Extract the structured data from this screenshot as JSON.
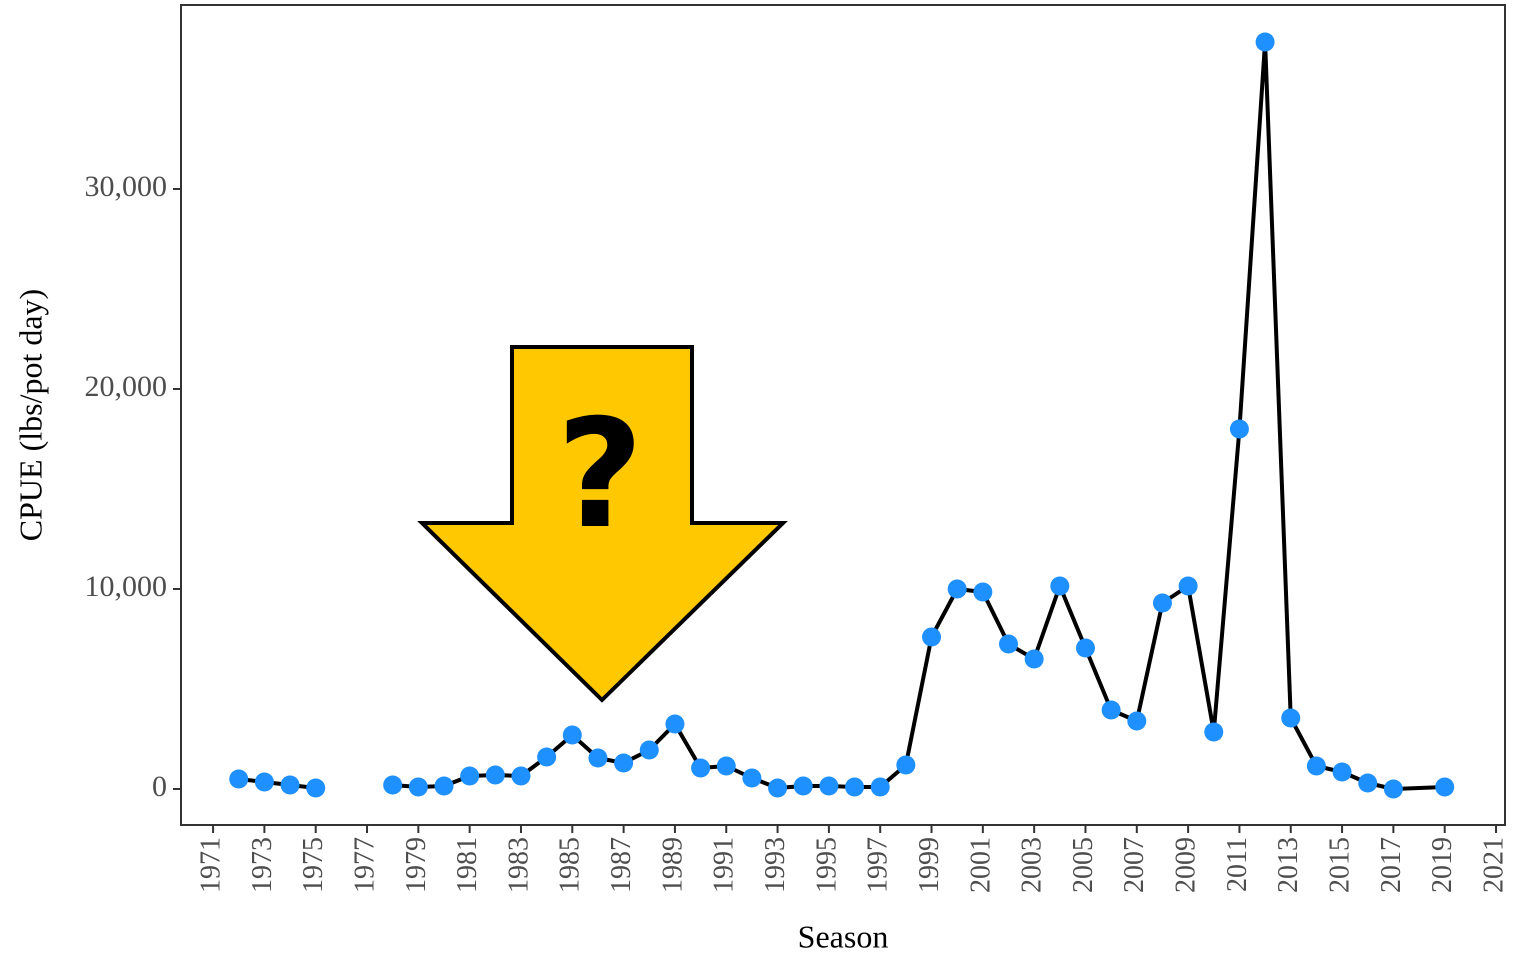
{
  "chart_data": {
    "type": "line",
    "x_label": "Season",
    "y_label": "CPUE (lbs/pot day)",
    "annotation": "?",
    "x": [
      1972,
      1973,
      1974,
      1975,
      1976,
      1977,
      1978,
      1979,
      1980,
      1981,
      1982,
      1983,
      1984,
      1985,
      1986,
      1987,
      1988,
      1989,
      1990,
      1991,
      1992,
      1993,
      1994,
      1995,
      1996,
      1997,
      1998,
      1999,
      2000,
      2001,
      2002,
      2003,
      2004,
      2005,
      2006,
      2007,
      2008,
      2009,
      2010,
      2011,
      2012,
      2013,
      2014,
      2015,
      2016,
      2017,
      2019
    ],
    "values": [
      500,
      350,
      200,
      50,
      null,
      null,
      200,
      100,
      150,
      650,
      700,
      650,
      1600,
      2700,
      1550,
      1300,
      1950,
      3250,
      1050,
      1150,
      550,
      50,
      150,
      150,
      100,
      100,
      1200,
      7600,
      10000,
      9850,
      7250,
      6500,
      10150,
      7050,
      3950,
      3400,
      9300,
      10150,
      2850,
      18000,
      37350,
      3550,
      1150,
      850,
      300,
      0,
      100
    ],
    "line_color": "#000000",
    "point_color": "#1e90ff",
    "xlim": [
      1969.75,
      2021.35
    ],
    "xticks": [
      1971,
      1973,
      1975,
      1977,
      1979,
      1981,
      1983,
      1985,
      1987,
      1989,
      1991,
      1993,
      1995,
      1997,
      1999,
      2001,
      2003,
      2005,
      2007,
      2009,
      2011,
      2013,
      2015,
      2017,
      2019,
      2021
    ],
    "ylim": [
      -1800,
      39200
    ],
    "yticks": [
      0,
      {
        "value": 10000,
        "label": "10,000"
      },
      {
        "value": 20000,
        "label": "20,000"
      },
      {
        "value": 30000,
        "label": "30,000"
      }
    ],
    "grid": false
  }
}
